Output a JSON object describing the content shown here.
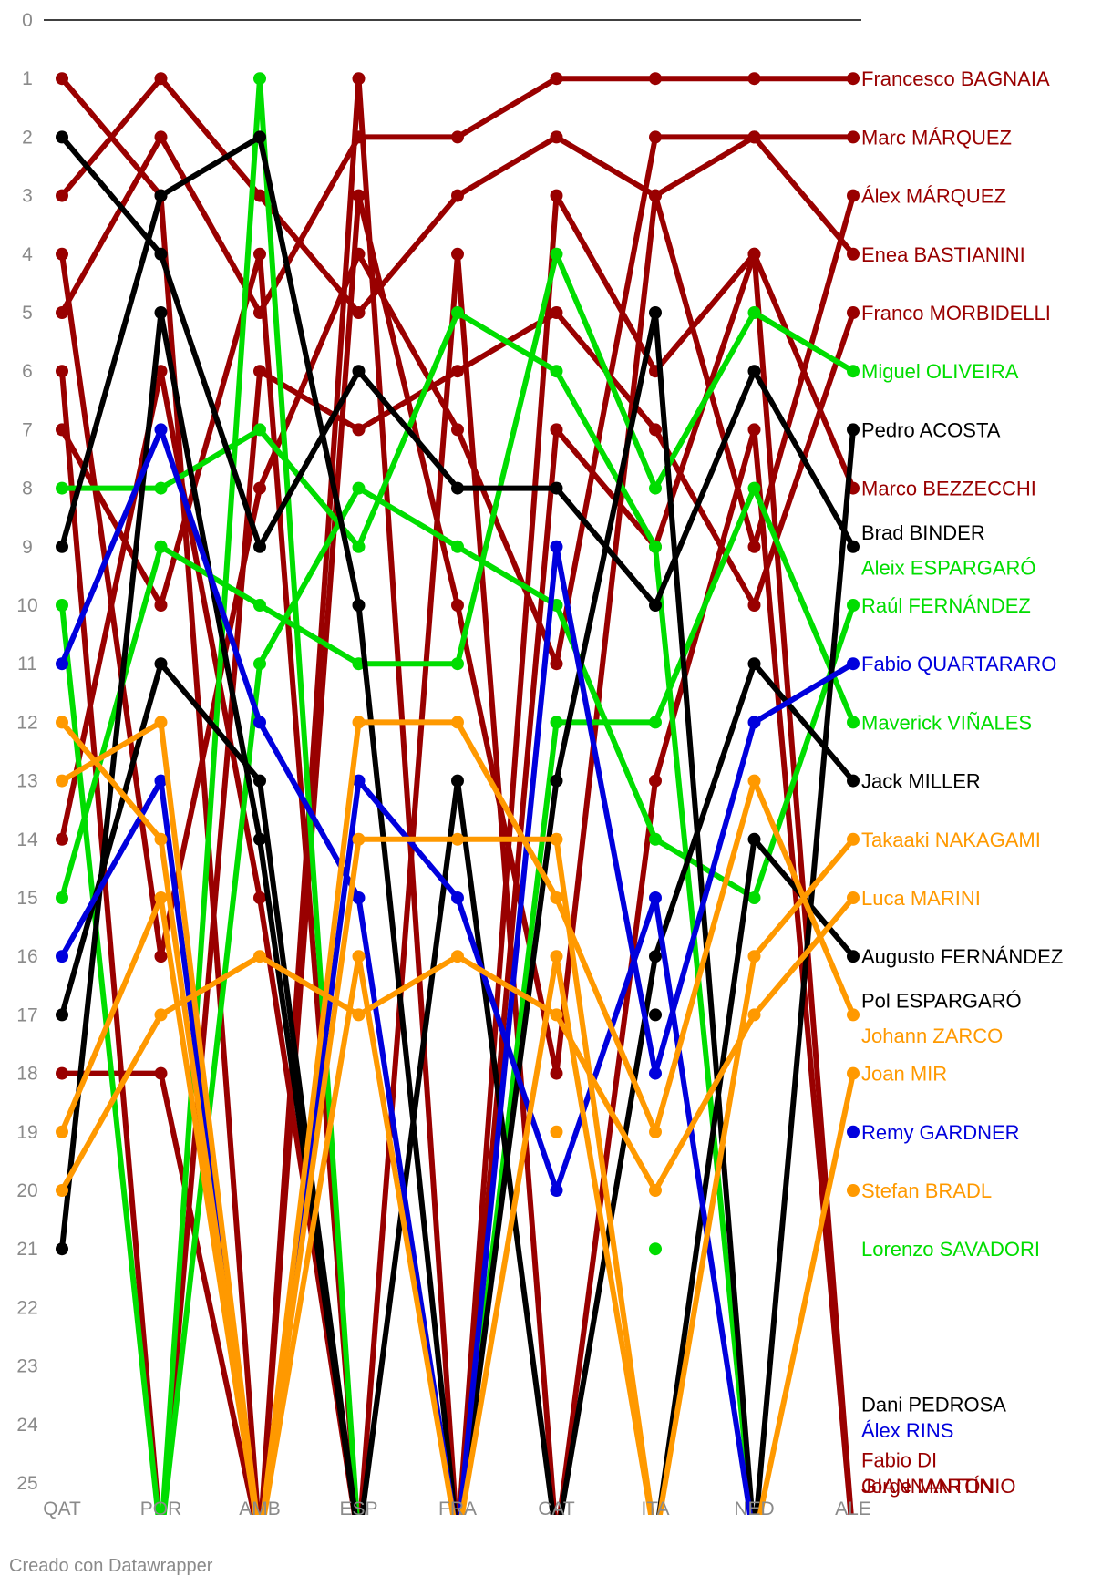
{
  "colors": {
    "Ducati": "#990000",
    "Aprilia": "#00dd00",
    "KTM": "#000000",
    "Yamaha": "#0000dd",
    "Honda": "#ff9900"
  },
  "credit": "Creado con Datawrapper",
  "chart_data": {
    "type": "line",
    "categories": [
      "QAT",
      "POR",
      "AMB",
      "ESP",
      "FRA",
      "CAT",
      "ITA",
      "NED",
      "ALE"
    ],
    "yticks": [
      0,
      1,
      2,
      3,
      4,
      5,
      6,
      7,
      8,
      9,
      10,
      11,
      12,
      13,
      14,
      15,
      16,
      17,
      18,
      19,
      20,
      21,
      22,
      23,
      24,
      25
    ],
    "ylim": [
      0,
      25
    ],
    "y_reversed": true,
    "grid": false,
    "series": [
      {
        "name": "Francesco BAGNAIA",
        "team": "Ducati",
        "values": [
          5,
          2,
          5,
          2,
          2,
          1,
          1,
          1,
          1
        ]
      },
      {
        "name": "Marc MÁRQUEZ",
        "team": "Ducati",
        "values": [
          4,
          16,
          8,
          4,
          7,
          11,
          2,
          2,
          2
        ]
      },
      {
        "name": "Álex MÁRQUEZ",
        "team": "Ducati",
        "values": [
          18,
          18,
          26,
          3,
          10,
          18,
          3,
          9,
          3
        ]
      },
      {
        "name": "Enea BASTIANINI",
        "team": "Ducati",
        "values": [
          3,
          1,
          3,
          5,
          3,
          2,
          3,
          2,
          4
        ]
      },
      {
        "name": "Franco MORBIDELLI",
        "team": "Ducati",
        "values": [
          6,
          26,
          6,
          7,
          6,
          5,
          7,
          10,
          5
        ]
      },
      {
        "name": "Marco BEZZECCHI",
        "team": "Ducati",
        "values": [
          14,
          6,
          15,
          26,
          26,
          7,
          9,
          4,
          8
        ]
      },
      {
        "name": "Fabio DI GIANNANTONIO",
        "team": "Ducati",
        "values": [
          7,
          10,
          4,
          26,
          4,
          26,
          13,
          7,
          26
        ]
      },
      {
        "name": "Jorge MARTÍN",
        "team": "Ducati",
        "values": [
          1,
          3,
          26,
          1,
          26,
          3,
          6,
          4,
          26
        ]
      },
      {
        "name": "Miguel OLIVEIRA",
        "team": "Aprilia",
        "values": [
          15,
          9,
          10,
          11,
          11,
          4,
          8,
          5,
          6
        ]
      },
      {
        "name": "Aleix ESPARGARÓ",
        "team": "Aprilia",
        "values": [
          8,
          8,
          7,
          9,
          5,
          6,
          9,
          26,
          26
        ]
      },
      {
        "name": "Raúl FERNÁNDEZ",
        "team": "Aprilia",
        "values": [
          26,
          26,
          11,
          8,
          9,
          10,
          14,
          15,
          10
        ]
      },
      {
        "name": "Maverick VIÑALES",
        "team": "Aprilia",
        "values": [
          10,
          26,
          1,
          26,
          26,
          12,
          12,
          8,
          12
        ]
      },
      {
        "name": "Lorenzo SAVADORI",
        "team": "Aprilia",
        "values": [
          null,
          null,
          null,
          null,
          null,
          null,
          21,
          null,
          null
        ]
      },
      {
        "name": "Pedro ACOSTA",
        "team": "KTM",
        "values": [
          9,
          3,
          2,
          10,
          26,
          13,
          5,
          26,
          7
        ]
      },
      {
        "name": "Brad BINDER",
        "team": "KTM",
        "values": [
          2,
          4,
          9,
          6,
          8,
          8,
          10,
          6,
          9
        ]
      },
      {
        "name": "Jack MILLER",
        "team": "KTM",
        "values": [
          17,
          11,
          13,
          26,
          13,
          26,
          16,
          11,
          13
        ]
      },
      {
        "name": "Augusto FERNÁNDEZ",
        "team": "KTM",
        "values": [
          21,
          5,
          14,
          26,
          26,
          26,
          26,
          14,
          16
        ]
      },
      {
        "name": "Pol ESPARGARÓ",
        "team": "KTM",
        "values": [
          null,
          null,
          null,
          null,
          null,
          null,
          17,
          null,
          null
        ]
      },
      {
        "name": "Dani PEDROSA",
        "team": "KTM",
        "values": [
          null,
          null,
          null,
          null,
          null,
          null,
          null,
          null,
          null
        ]
      },
      {
        "name": "Fabio QUARTARARO",
        "team": "Yamaha",
        "values": [
          11,
          7,
          12,
          15,
          26,
          9,
          18,
          12,
          11
        ]
      },
      {
        "name": "Álex RINS",
        "team": "Yamaha",
        "values": [
          16,
          13,
          26,
          13,
          15,
          20,
          15,
          26,
          null
        ]
      },
      {
        "name": "Remy GARDNER",
        "team": "Yamaha",
        "values": [
          null,
          null,
          null,
          null,
          null,
          null,
          null,
          null,
          19
        ]
      },
      {
        "name": "Takaaki NAKAGAMI",
        "team": "Honda",
        "values": [
          13,
          12,
          26,
          14,
          14,
          14,
          26,
          16,
          14
        ]
      },
      {
        "name": "Luca MARINI",
        "team": "Honda",
        "values": [
          20,
          17,
          16,
          17,
          16,
          17,
          20,
          17,
          15
        ]
      },
      {
        "name": "Johann ZARCO",
        "team": "Honda",
        "values": [
          12,
          14,
          26,
          12,
          12,
          15,
          19,
          13,
          17
        ]
      },
      {
        "name": "Joan MIR",
        "team": "Honda",
        "values": [
          19,
          15,
          26,
          16,
          26,
          16,
          26,
          26,
          18
        ]
      },
      {
        "name": "Stefan BRADL",
        "team": "Honda",
        "values": [
          null,
          null,
          null,
          null,
          null,
          19,
          null,
          null,
          20
        ]
      }
    ],
    "labels": [
      {
        "name": "Francesco BAGNAIA",
        "team": "Ducati",
        "pos": 1
      },
      {
        "name": "Marc MÁRQUEZ",
        "team": "Ducati",
        "pos": 2
      },
      {
        "name": "Álex MÁRQUEZ",
        "team": "Ducati",
        "pos": 3
      },
      {
        "name": "Enea BASTIANINI",
        "team": "Ducati",
        "pos": 4
      },
      {
        "name": "Franco MORBIDELLI",
        "team": "Ducati",
        "pos": 5
      },
      {
        "name": "Miguel OLIVEIRA",
        "team": "Aprilia",
        "pos": 6
      },
      {
        "name": "Pedro ACOSTA",
        "team": "KTM",
        "pos": 7
      },
      {
        "name": "Marco BEZZECCHI",
        "team": "Ducati",
        "pos": 8
      },
      {
        "name": "Brad BINDER",
        "team": "KTM",
        "pos": 8.75
      },
      {
        "name": "Aleix ESPARGARÓ",
        "team": "Aprilia",
        "pos": 9.35
      },
      {
        "name": "Raúl FERNÁNDEZ",
        "team": "Aprilia",
        "pos": 10
      },
      {
        "name": "Fabio QUARTARARO",
        "team": "Yamaha",
        "pos": 11
      },
      {
        "name": "Maverick VIÑALES",
        "team": "Aprilia",
        "pos": 12
      },
      {
        "name": "Jack MILLER",
        "team": "KTM",
        "pos": 13
      },
      {
        "name": "Takaaki NAKAGAMI",
        "team": "Honda",
        "pos": 14
      },
      {
        "name": "Luca MARINI",
        "team": "Honda",
        "pos": 15
      },
      {
        "name": "Augusto FERNÁNDEZ",
        "team": "KTM",
        "pos": 16
      },
      {
        "name": "Pol ESPARGARÓ",
        "team": "KTM",
        "pos": 16.75
      },
      {
        "name": "Johann ZARCO",
        "team": "Honda",
        "pos": 17.35
      },
      {
        "name": "Joan MIR",
        "team": "Honda",
        "pos": 18
      },
      {
        "name": "Remy GARDNER",
        "team": "Yamaha",
        "pos": 19
      },
      {
        "name": "Stefan BRADL",
        "team": "Honda",
        "pos": 20
      },
      {
        "name": "Lorenzo SAVADORI",
        "team": "Aprilia",
        "pos": 21
      },
      {
        "name": "Dani PEDROSA",
        "team": "KTM",
        "pos": 23.65
      },
      {
        "name": "Álex RINS",
        "team": "Yamaha",
        "pos": 24.1
      },
      {
        "name": "Fabio DI",
        "team": "Ducati",
        "pos": 24.6
      },
      {
        "name": "GIANNANTONIO",
        "team": "Ducati",
        "pos": 25.05
      },
      {
        "name": "Jorge MARTÍN",
        "team": "Ducati",
        "pos": 25.05
      }
    ]
  }
}
